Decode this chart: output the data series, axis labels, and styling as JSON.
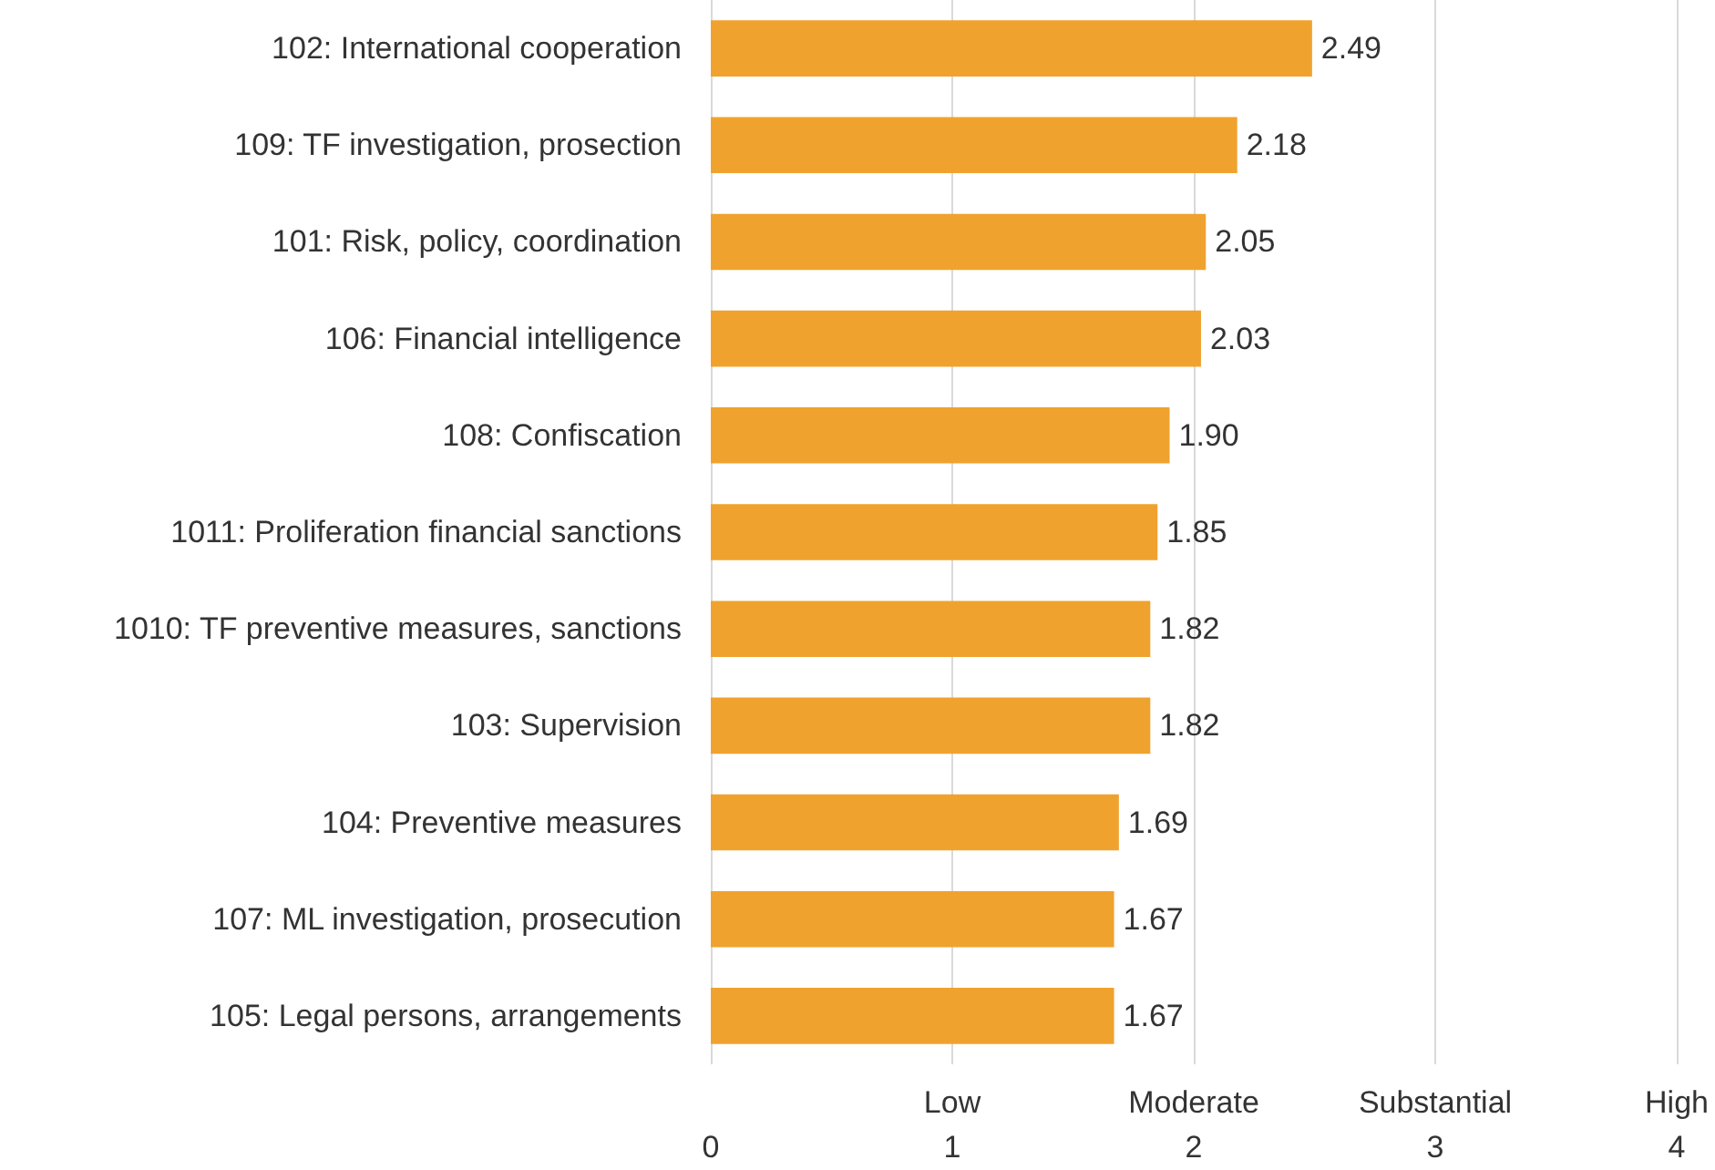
{
  "chart_data": {
    "type": "bar",
    "orientation": "horizontal",
    "categories": [
      "102: International cooperation",
      "109: TF investigation, prosection",
      "101: Risk, policy, coordination",
      "106: Financial intelligence",
      "108: Confiscation",
      "1011: Proliferation financial sanctions",
      "1010: TF preventive measures, sanctions",
      "103: Supervision",
      "104: Preventive measures",
      "107: ML investigation, prosecution",
      "105: Legal persons, arrangements"
    ],
    "values": [
      2.49,
      2.18,
      2.05,
      2.03,
      1.9,
      1.85,
      1.82,
      1.82,
      1.69,
      1.67,
      1.67
    ],
    "value_labels": [
      "2.49",
      "2.18",
      "2.05",
      "2.03",
      "1.90",
      "1.85",
      "1.82",
      "1.82",
      "1.69",
      "1.67",
      "1.67"
    ],
    "color": "#f0a22e",
    "xlim": [
      0,
      4
    ],
    "xticks": [
      0,
      1,
      2,
      3,
      4
    ],
    "annotations": [
      "Low",
      "Moderate",
      "Substantial",
      "High"
    ],
    "grid": "x"
  }
}
